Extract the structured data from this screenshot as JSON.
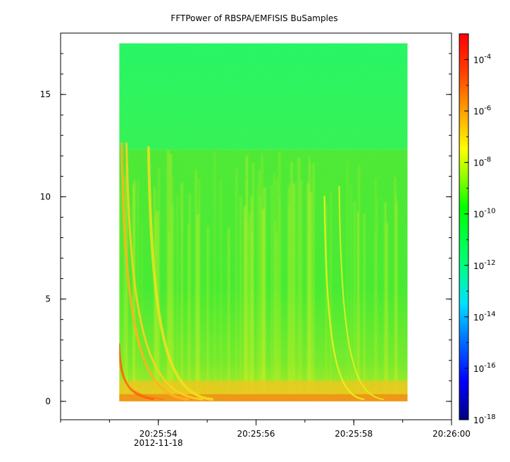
{
  "chart_data": {
    "type": "heatmap",
    "title": "FFTPower of RBSPA/EMFISIS  BuSamples",
    "xlabel": "",
    "ylabel": "",
    "x_range": [
      "20:25:52.0",
      "20:26:00.0"
    ],
    "y_range": [
      -0.9,
      18.0
    ],
    "x_ticks": [
      {
        "time": "20:25:54",
        "label": "20:25:54",
        "sublabel": "2012-11-18"
      },
      {
        "time": "20:25:56",
        "label": "20:25:56",
        "sublabel": ""
      },
      {
        "time": "20:25:58",
        "label": "20:25:58",
        "sublabel": ""
      },
      {
        "time": "20:26:00",
        "label": "20:26:00",
        "sublabel": ""
      }
    ],
    "y_ticks": [
      {
        "value": 0,
        "label": "0"
      },
      {
        "value": 5,
        "label": "5"
      },
      {
        "value": 10,
        "label": "10"
      },
      {
        "value": 15,
        "label": "15"
      }
    ],
    "data_extent": {
      "time_start": "20:25:53.2",
      "time_end": "20:25:59.1",
      "y_min": 0.0,
      "y_max": 17.5,
      "cutoff_y": 12.3
    },
    "colorbar": {
      "scale": "log",
      "range": [
        1e-18,
        0.001
      ],
      "ticks": [
        {
          "exp": "-4"
        },
        {
          "exp": "-6"
        },
        {
          "exp": "-8"
        },
        {
          "exp": "-10"
        },
        {
          "exp": "-12"
        },
        {
          "exp": "-14"
        },
        {
          "exp": "-16"
        },
        {
          "exp": "-18"
        }
      ],
      "colors": [
        "#000080",
        "#0000ff",
        "#0080ff",
        "#00e0ff",
        "#00ff80",
        "#00ff00",
        "#80ff00",
        "#ffff00",
        "#ffa000",
        "#ff4000",
        "#ff0000"
      ]
    }
  }
}
